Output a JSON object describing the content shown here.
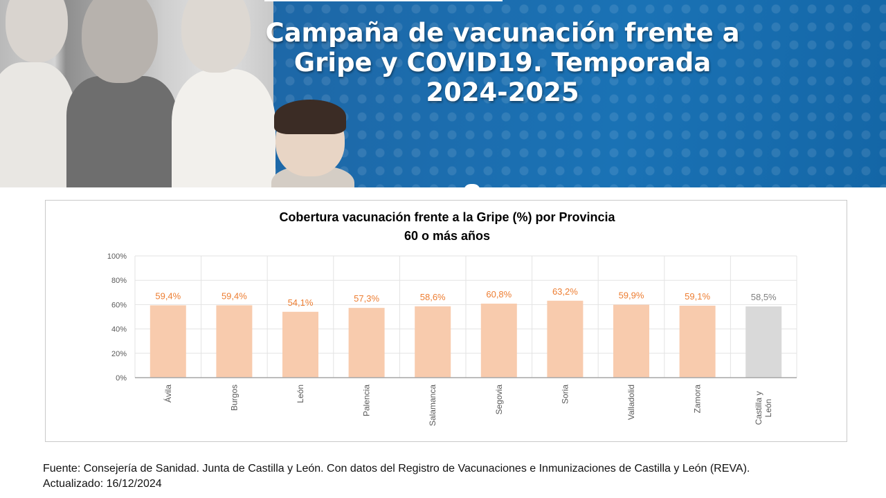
{
  "banner": {
    "title_line1": "Campaña de vacunación frente a",
    "title_line2": "Gripe y COVID19. Temporada",
    "title_line3": "2024-2025"
  },
  "chart_data": {
    "type": "bar",
    "title_line1": "Cobertura vacunación frente a la Gripe (%) por Provincia",
    "title_line2": "60 o más años",
    "categories": [
      "Ávila",
      "Burgos",
      "León",
      "Palencia",
      "Salamanca",
      "Segovia",
      "Soria",
      "Valladolid",
      "Zamora",
      "Castilla y León"
    ],
    "values": [
      59.4,
      59.4,
      54.1,
      57.3,
      58.6,
      60.8,
      63.2,
      59.9,
      59.1,
      58.5
    ],
    "data_labels": [
      "59,4%",
      "59,4%",
      "54,1%",
      "57,3%",
      "58,6%",
      "60,8%",
      "63,2%",
      "59,9%",
      "59,1%",
      "58,5%"
    ],
    "y_ticks": [
      0,
      20,
      40,
      60,
      80,
      100
    ],
    "y_tick_labels": [
      "0%",
      "20%",
      "40%",
      "60%",
      "80%",
      "100%"
    ],
    "ylim": [
      0,
      100
    ],
    "xlabel": "",
    "ylabel": "",
    "grid": true,
    "legend": "none",
    "colors": {
      "province_bar": "#f8cbad",
      "total_bar": "#d9d9d9",
      "province_label": "#ed7d31",
      "total_label": "#7f7f7f",
      "grid": "#e3e3e3",
      "axis": "#a6a6a6"
    }
  },
  "footer": {
    "source": "Fuente: Consejería de Sanidad. Junta de Castilla y León. Con datos del Registro de Vacunaciones e Inmunizaciones  de Castilla y León (REVA).",
    "updated": "Actualizado: 16/12/2024"
  }
}
